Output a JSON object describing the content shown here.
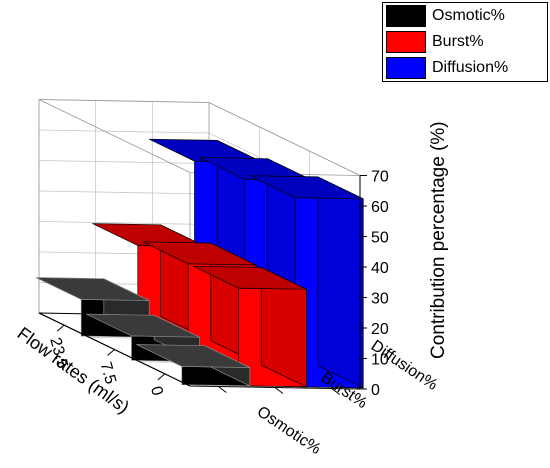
{
  "chart_data": {
    "type": "bar",
    "zlabel": "Contribution percentage (%)",
    "xlabel": "Flow rates (ml/s)",
    "x_categories": [
      "23.5",
      "7.5",
      "0"
    ],
    "y_categories": [
      "Diffusion%",
      "Burst%",
      "Osmotic%"
    ],
    "zlim": [
      0,
      70
    ],
    "z_ticks": [
      "0",
      "10",
      "20",
      "30",
      "40",
      "50",
      "60",
      "70"
    ],
    "grid": true,
    "legend_position": "top-right",
    "series": [
      {
        "name": "Osmotic%",
        "color": "#000000",
        "values": {
          "23.5": 12,
          "7.5": 8,
          "0": 6
        }
      },
      {
        "name": "Burst%",
        "color": "#ff0000",
        "values": {
          "23.5": 30,
          "7.5": 32,
          "0": 32
        }
      },
      {
        "name": "Diffusion%",
        "color": "#0000ff",
        "values": {
          "23.5": 58,
          "7.5": 60,
          "0": 62
        }
      }
    ]
  }
}
